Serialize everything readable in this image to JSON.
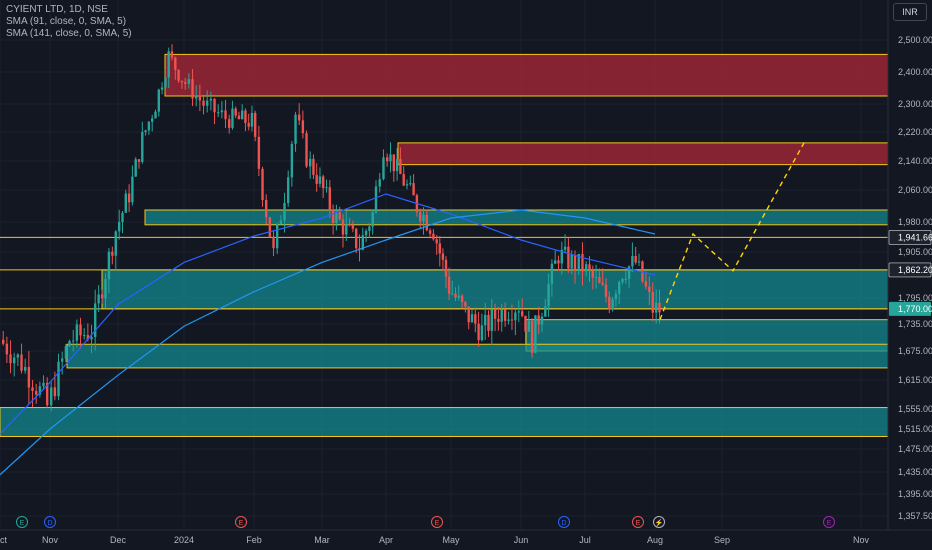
{
  "header": {
    "line1": "CYIENT LTD, 1D, NSE",
    "line2": "SMA (91, close, 0, SMA, 5)",
    "line3": "SMA (141, close, 0, SMA, 5)"
  },
  "currency": "INR",
  "colors": {
    "background": "#131722",
    "up": "#26a69a",
    "down": "#ef5350",
    "sma91": "#2962ff",
    "sma141": "#2196f3",
    "zone_red": "#b2283a",
    "zone_teal": "#128c93",
    "zone_border": "#f5c518",
    "projection": "#ffd400"
  },
  "chart_data": {
    "type": "candlestick",
    "title": "CYIENT LTD, 1D, NSE",
    "currency": "INR",
    "ylim": [
      1300,
      2560
    ],
    "y_ticks": [
      "2,500.00",
      "2,400.00",
      "2,300.00",
      "2,220.00",
      "2,140.00",
      "2,060.00",
      "1,980.00",
      "1,905.00",
      "1,795.00",
      "1,735.00",
      "1,675.00",
      "1,615.00",
      "1,555.00",
      "1,515.00",
      "1,475.00",
      "1,435.00",
      "1,395.00",
      "1,357.50"
    ],
    "x_ticks": [
      "Nov",
      "Dec",
      "2024",
      "Feb",
      "Mar",
      "Apr",
      "May",
      "Jun",
      "Jul",
      "Aug",
      "Sep",
      "Oct",
      "Nov"
    ],
    "price_labels": [
      {
        "text": "1,941.66",
        "value": 1941.66,
        "style": "dark"
      },
      {
        "text": "1,862.20",
        "value": 1862.2,
        "style": "dark"
      },
      {
        "text": "1,770.00",
        "value": 1770,
        "style": "teal"
      }
    ],
    "horizontal_lines": [
      1941.66,
      1770,
      1862.2
    ],
    "zones": [
      {
        "kind": "resistance",
        "from_month": "Dec",
        "top": 2455,
        "bottom": 2325
      },
      {
        "kind": "resistance",
        "from_month": "Apr",
        "top": 2190,
        "bottom": 2130
      },
      {
        "kind": "support",
        "from_month": "Dec",
        "top": 2010,
        "bottom": 1973
      },
      {
        "kind": "support",
        "from_month": "Nov",
        "top": 1862.2,
        "bottom": 1770
      },
      {
        "kind": "support",
        "from_month": "Jun",
        "top": 1745,
        "bottom": 1675
      },
      {
        "kind": "support",
        "from_month": "Nov",
        "top": 1690,
        "bottom": 1640
      },
      {
        "kind": "support",
        "from_month": "Oct",
        "top": 1558,
        "bottom": 1500
      }
    ],
    "projection": [
      {
        "date": "Aug",
        "value": 1745
      },
      {
        "date": "Aug",
        "value": 1950
      },
      {
        "date": "Sep",
        "value": 1860
      },
      {
        "date": "Oct",
        "value": 2200
      }
    ],
    "series": [
      {
        "name": "SMA (91, close, 0, SMA, 5)",
        "points": [
          [
            "Oct",
            1505
          ],
          [
            "Nov",
            1610
          ],
          [
            "Dec",
            1780
          ],
          [
            "2024",
            1880
          ],
          [
            "Feb",
            1945
          ],
          [
            "Mar",
            1990
          ],
          [
            "Apr",
            2050
          ],
          [
            "May",
            2000
          ],
          [
            "Jun",
            1935
          ],
          [
            "Jul",
            1890
          ],
          [
            "Aug",
            1850
          ]
        ]
      },
      {
        "name": "SMA (141, close, 0, SMA, 5)",
        "points": [
          [
            "Oct",
            1430
          ],
          [
            "Nov",
            1515
          ],
          [
            "Dec",
            1625
          ],
          [
            "2024",
            1730
          ],
          [
            "Feb",
            1810
          ],
          [
            "Mar",
            1880
          ],
          [
            "Apr",
            1935
          ],
          [
            "May",
            1990
          ],
          [
            "Jun",
            2010
          ],
          [
            "Jul",
            1990
          ],
          [
            "Aug",
            1950
          ]
        ]
      }
    ],
    "price_path": [
      [
        "Oct",
        1700
      ],
      [
        "Oct",
        1650
      ],
      [
        "Oct",
        1580
      ],
      [
        "Nov",
        1560
      ],
      [
        "Nov",
        1700
      ],
      [
        "Nov",
        1720
      ],
      [
        "Dec",
        1960
      ],
      [
        "Dec",
        2050
      ],
      [
        "Dec",
        2200
      ],
      [
        "Dec",
        2300
      ],
      [
        "Dec",
        2450
      ],
      [
        "2024",
        2380
      ],
      [
        "2024",
        2300
      ],
      [
        "2024",
        2260
      ],
      [
        "Feb",
        2250
      ],
      [
        "Feb",
        2060
      ],
      [
        "Feb",
        1900
      ],
      [
        "Feb",
        2050
      ],
      [
        "Feb",
        2270
      ],
      [
        "Feb",
        2150
      ],
      [
        "Mar",
        2080
      ],
      [
        "Mar",
        2000
      ],
      [
        "Mar",
        1960
      ],
      [
        "Mar",
        1920
      ],
      [
        "Mar",
        2000
      ],
      [
        "Apr",
        2180
      ],
      [
        "Apr",
        2100
      ],
      [
        "Apr",
        2020
      ],
      [
        "Apr",
        1960
      ],
      [
        "May",
        1820
      ],
      [
        "May",
        1760
      ],
      [
        "May",
        1720
      ],
      [
        "May",
        1760
      ],
      [
        "Jun",
        1780
      ],
      [
        "Jun",
        1700
      ],
      [
        "Jun",
        1800
      ],
      [
        "Jun",
        1900
      ],
      [
        "Jun",
        1880
      ],
      [
        "Jul",
        1870
      ],
      [
        "Jul",
        1830
      ],
      [
        "Jul",
        1790
      ],
      [
        "Jul",
        1860
      ],
      [
        "Jul",
        1880
      ],
      [
        "Aug",
        1770
      ],
      [
        "Aug",
        1760
      ]
    ],
    "events": [
      "E",
      "D",
      "E",
      "E",
      "E",
      "D",
      "E",
      "lightning",
      "E"
    ]
  }
}
